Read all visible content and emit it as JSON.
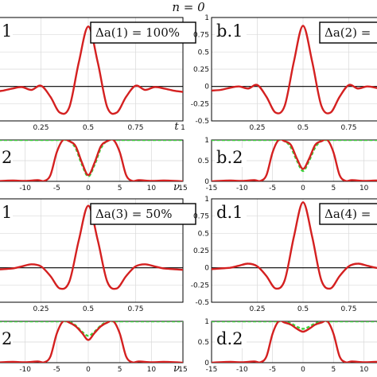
{
  "figure_title": "n = 0",
  "chart_data": [
    {
      "id": "a1",
      "type": "line",
      "panel_label": "1",
      "box_label": "Δa(1) = 100%",
      "xlabel": "t",
      "xlim": [
        0,
        1
      ],
      "ylim": [
        -0.5,
        1
      ],
      "xticks": [
        "0.25",
        "0.5",
        "0.75",
        "1"
      ],
      "yticks": [],
      "series": [
        {
          "x": [
            0,
            0.05,
            0.1,
            0.15,
            0.2,
            0.25,
            0.3,
            0.35,
            0.4,
            0.45,
            0.5,
            0.55,
            0.6,
            0.65,
            0.7,
            0.75,
            0.8,
            0.85,
            0.9,
            0.95,
            1
          ],
          "y": [
            -0.08,
            -0.06,
            -0.03,
            -0.01,
            -0.05,
            0.01,
            -0.15,
            -0.38,
            -0.3,
            0.35,
            0.87,
            0.35,
            -0.3,
            -0.38,
            -0.15,
            0.01,
            -0.05,
            -0.01,
            -0.03,
            -0.06,
            -0.08
          ]
        }
      ]
    },
    {
      "id": "b1",
      "type": "line",
      "panel_label": "b.1",
      "box_label": "Δa(2) = ",
      "xlabel": "",
      "xlim": [
        0,
        1
      ],
      "ylim": [
        -0.5,
        1
      ],
      "xticks": [
        "0.25",
        "0.5",
        "0.75"
      ],
      "yticks": [
        "-0.5",
        "-0.25",
        "0",
        "0.25",
        "0.5",
        "0.75",
        "1"
      ],
      "series": [
        {
          "x": [
            0,
            0.05,
            0.1,
            0.15,
            0.2,
            0.25,
            0.3,
            0.35,
            0.4,
            0.45,
            0.5,
            0.55,
            0.6,
            0.65,
            0.7,
            0.75,
            0.8,
            0.85,
            0.9,
            0.95,
            1
          ],
          "y": [
            -0.06,
            -0.05,
            -0.02,
            0.0,
            -0.03,
            0.02,
            -0.15,
            -0.38,
            -0.28,
            0.36,
            0.88,
            0.36,
            -0.28,
            -0.38,
            -0.15,
            0.02,
            -0.03,
            0.0,
            -0.02,
            -0.05,
            -0.06
          ]
        }
      ]
    },
    {
      "id": "a2",
      "type": "line",
      "panel_label": "2",
      "box_label": "",
      "xlabel": "ν",
      "xlim": [
        -15,
        15
      ],
      "ylim": [
        0,
        1
      ],
      "xticks": [
        "-10",
        "-5",
        "0",
        "5",
        "10",
        "15"
      ],
      "yticks": [],
      "series": [
        {
          "x": [
            -15,
            -12,
            -10,
            -8,
            -7,
            -6,
            -5,
            -4,
            -3,
            -2,
            -1,
            0,
            1,
            2,
            3,
            4,
            5,
            6,
            7,
            8,
            10,
            12,
            15
          ],
          "y": [
            0,
            0.02,
            0.01,
            0.03,
            0.01,
            0.15,
            0.7,
            1.0,
            0.97,
            0.85,
            0.45,
            0.15,
            0.45,
            0.85,
            0.97,
            1.0,
            0.7,
            0.15,
            0.01,
            0.03,
            0.01,
            0.02,
            0
          ]
        },
        {
          "x": [
            -15,
            -5,
            -4,
            -3,
            -2,
            -1,
            0,
            1,
            2,
            3,
            4,
            5,
            15
          ],
          "y": [
            1,
            1,
            1,
            0.98,
            0.8,
            0.4,
            0.12,
            0.4,
            0.8,
            0.98,
            1,
            1,
            1
          ]
        }
      ]
    },
    {
      "id": "b2",
      "type": "line",
      "panel_label": "b.2",
      "box_label": "",
      "xlabel": "",
      "xlim": [
        -15,
        15
      ],
      "ylim": [
        0,
        1
      ],
      "xticks": [
        "-15",
        "-10",
        "-5",
        "0",
        "5",
        "10"
      ],
      "yticks": [
        "0",
        "0.5",
        "1"
      ],
      "series": [
        {
          "x": [
            -15,
            -12,
            -10,
            -8,
            -7,
            -6,
            -5,
            -4,
            -3,
            -2,
            -1,
            0,
            1,
            2,
            3,
            4,
            5,
            6,
            7,
            8,
            10,
            12,
            15
          ],
          "y": [
            0,
            0.02,
            0.01,
            0.03,
            0.01,
            0.15,
            0.7,
            1.0,
            0.97,
            0.88,
            0.55,
            0.3,
            0.55,
            0.88,
            0.97,
            1.0,
            0.7,
            0.15,
            0.01,
            0.03,
            0.01,
            0.02,
            0
          ]
        },
        {
          "x": [
            -15,
            -5,
            -4,
            -3,
            -2,
            -1,
            0,
            1,
            2,
            3,
            4,
            5,
            15
          ],
          "y": [
            1,
            1,
            1,
            0.98,
            0.82,
            0.5,
            0.25,
            0.5,
            0.82,
            0.98,
            1,
            1,
            1
          ]
        }
      ]
    },
    {
      "id": "c1",
      "type": "line",
      "panel_label": "1",
      "box_label": "Δa(3) = 50%",
      "xlabel": "",
      "xlim": [
        0,
        1
      ],
      "ylim": [
        -0.5,
        1
      ],
      "xticks": [
        "0.25",
        "0.5",
        "0.75"
      ],
      "yticks": [],
      "series": [
        {
          "x": [
            0,
            0.05,
            0.1,
            0.15,
            0.2,
            0.25,
            0.3,
            0.35,
            0.4,
            0.45,
            0.5,
            0.55,
            0.6,
            0.65,
            0.7,
            0.75,
            0.8,
            0.85,
            0.9,
            0.95,
            1
          ],
          "y": [
            -0.03,
            -0.02,
            -0.01,
            0.02,
            0.05,
            0.02,
            -0.12,
            -0.3,
            -0.2,
            0.4,
            0.9,
            0.4,
            -0.2,
            -0.3,
            -0.12,
            0.02,
            0.05,
            0.02,
            -0.01,
            -0.02,
            -0.03
          ]
        }
      ]
    },
    {
      "id": "d1",
      "type": "line",
      "panel_label": "d.1",
      "box_label": "Δa(4) = ",
      "xlabel": "",
      "xlim": [
        0,
        1
      ],
      "ylim": [
        -0.5,
        1
      ],
      "xticks": [
        "0.25",
        "0.5",
        "0.75"
      ],
      "yticks": [
        "-0.5",
        "-0.25",
        "0",
        "0.25",
        "0.5",
        "0.75",
        "1"
      ],
      "series": [
        {
          "x": [
            0,
            0.05,
            0.1,
            0.15,
            0.2,
            0.25,
            0.3,
            0.35,
            0.4,
            0.45,
            0.5,
            0.55,
            0.6,
            0.65,
            0.7,
            0.75,
            0.8,
            0.85,
            0.9,
            0.95,
            1
          ],
          "y": [
            -0.02,
            -0.01,
            0.0,
            0.03,
            0.06,
            0.02,
            -0.12,
            -0.3,
            -0.18,
            0.45,
            0.95,
            0.45,
            -0.18,
            -0.3,
            -0.12,
            0.02,
            0.06,
            0.03,
            0.0,
            -0.01,
            -0.02
          ]
        }
      ]
    },
    {
      "id": "c2",
      "type": "line",
      "panel_label": "2",
      "box_label": "",
      "xlabel": "ν",
      "xlim": [
        -15,
        15
      ],
      "ylim": [
        0,
        1
      ],
      "xticks": [
        "-10",
        "-5",
        "0",
        "5",
        "10",
        "15"
      ],
      "yticks": [],
      "series": [
        {
          "x": [
            -15,
            -12,
            -10,
            -8,
            -7,
            -6,
            -5,
            -4,
            -3,
            -2,
            -1,
            0,
            1,
            2,
            3,
            4,
            5,
            6,
            7,
            8,
            10,
            12,
            15
          ],
          "y": [
            0,
            0.02,
            0.01,
            0.03,
            0.01,
            0.15,
            0.7,
            1.0,
            0.97,
            0.88,
            0.72,
            0.55,
            0.72,
            0.88,
            0.97,
            1.0,
            0.7,
            0.15,
            0.01,
            0.03,
            0.01,
            0.02,
            0
          ]
        },
        {
          "x": [
            -15,
            -5,
            -4,
            -3,
            -2,
            -1,
            0,
            1,
            2,
            3,
            4,
            5,
            15
          ],
          "y": [
            1,
            1,
            1,
            0.99,
            0.9,
            0.75,
            0.65,
            0.75,
            0.9,
            0.99,
            1,
            1,
            1
          ]
        }
      ]
    },
    {
      "id": "d2",
      "type": "line",
      "panel_label": "d.2",
      "box_label": "",
      "xlabel": "",
      "xlim": [
        -15,
        15
      ],
      "ylim": [
        0,
        1
      ],
      "xticks": [
        "-15",
        "-10",
        "-5",
        "0",
        "5",
        "10"
      ],
      "yticks": [
        "0",
        "0.5",
        "1"
      ],
      "series": [
        {
          "x": [
            -15,
            -12,
            -10,
            -8,
            -7,
            -6,
            -5,
            -4,
            -3,
            -2,
            -1,
            0,
            1,
            2,
            3,
            4,
            5,
            6,
            7,
            8,
            10,
            12,
            15
          ],
          "y": [
            0,
            0.02,
            0.01,
            0.03,
            0.01,
            0.15,
            0.7,
            1.0,
            0.97,
            0.92,
            0.82,
            0.75,
            0.82,
            0.92,
            0.97,
            1.0,
            0.7,
            0.15,
            0.01,
            0.03,
            0.01,
            0.02,
            0
          ]
        },
        {
          "x": [
            -15,
            -5,
            -4,
            -3,
            -2,
            -1,
            0,
            1,
            2,
            3,
            4,
            5,
            15
          ],
          "y": [
            1,
            1,
            1,
            0.99,
            0.95,
            0.87,
            0.82,
            0.87,
            0.95,
            0.99,
            1,
            1,
            1
          ]
        }
      ]
    }
  ],
  "colors": {
    "signal": "#d42020",
    "reference": "#3bd13b",
    "axis": "#000000",
    "grid": "#d9d9d9"
  }
}
